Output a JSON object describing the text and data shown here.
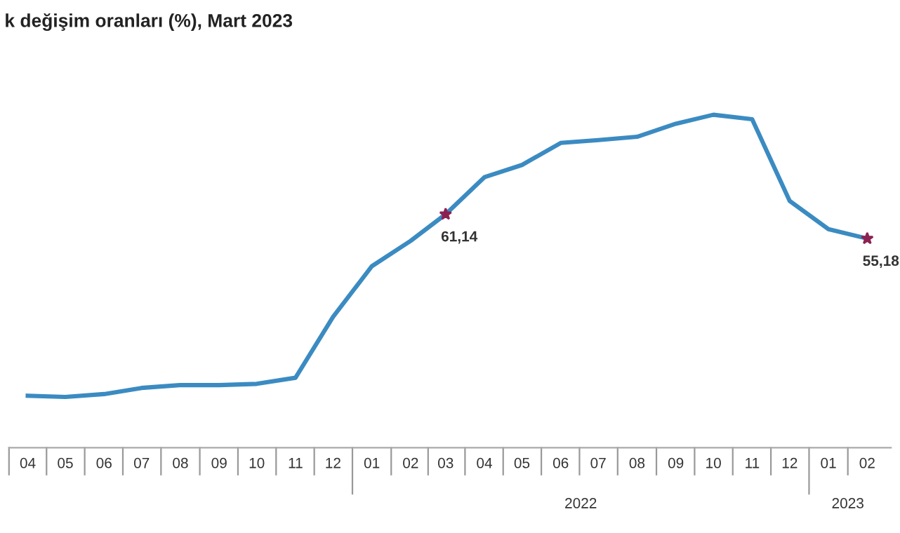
{
  "chart_data": {
    "type": "line",
    "title": "k değişim oranları (%), Mart 2023",
    "x": [
      "2021-04",
      "2021-05",
      "2021-06",
      "2021-07",
      "2021-08",
      "2021-09",
      "2021-10",
      "2021-11",
      "2021-12",
      "2022-01",
      "2022-02",
      "2022-03",
      "2022-04",
      "2022-05",
      "2022-06",
      "2022-07",
      "2022-08",
      "2022-09",
      "2022-10",
      "2022-11",
      "2022-12",
      "2023-01",
      "2023-02"
    ],
    "series": [
      {
        "color": "#3b8bc2",
        "values": [
          16.7,
          16.4,
          17.1,
          18.6,
          19.3,
          19.3,
          19.6,
          21.1,
          36.0,
          48.4,
          54.6,
          61.14,
          70.2,
          73.2,
          78.6,
          79.3,
          80.1,
          83.3,
          85.5,
          84.4,
          64.4,
          57.5,
          55.18
        ],
        "value_labels": [
          null,
          null,
          null,
          null,
          null,
          null,
          null,
          null,
          null,
          null,
          null,
          "61,14",
          null,
          null,
          null,
          null,
          null,
          null,
          null,
          null,
          null,
          null,
          "55,18"
        ]
      }
    ],
    "xlim": [
      "2021-03-17",
      "2023-02-20"
    ],
    "xticks": [
      {
        "value": "2021-04",
        "label": "04"
      },
      {
        "value": "2021-05",
        "label": "05"
      },
      {
        "value": "2021-06",
        "label": "06"
      },
      {
        "value": "2021-07",
        "label": "07"
      },
      {
        "value": "2021-08",
        "label": "08"
      },
      {
        "value": "2021-09",
        "label": "09"
      },
      {
        "value": "2021-10",
        "label": "10"
      },
      {
        "value": "2021-11",
        "label": "11"
      },
      {
        "value": "2021-12",
        "label": "12"
      },
      {
        "value": "2022-01",
        "label": "01"
      },
      {
        "value": "2022-02",
        "label": "02"
      },
      {
        "value": "2022-03",
        "label": "03"
      },
      {
        "value": "2022-04",
        "label": "04"
      },
      {
        "value": "2022-05",
        "label": "05"
      },
      {
        "value": "2022-06",
        "label": "06"
      },
      {
        "value": "2022-07",
        "label": "07"
      },
      {
        "value": "2022-08",
        "label": "08"
      },
      {
        "value": "2022-09",
        "label": "09"
      },
      {
        "value": "2022-10",
        "label": "10"
      },
      {
        "value": "2022-11",
        "label": "11"
      },
      {
        "value": "2022-12",
        "label": "12"
      },
      {
        "value": "2023-01",
        "label": "01"
      },
      {
        "value": "2023-02",
        "label": "02"
      }
    ],
    "tick_labels": "x",
    "annotations": [
      "2022",
      "2023"
    ],
    "grid": false,
    "legend": false,
    "marker": "none",
    "line_style": "solid"
  }
}
